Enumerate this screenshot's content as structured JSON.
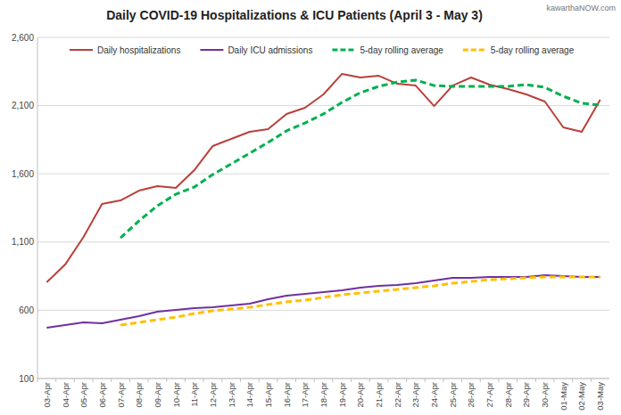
{
  "chart_data": {
    "type": "line",
    "title": "Daily COVID-19 Hospitalizations & ICU Patients (April 3 - May 3)",
    "annotations": [
      "kawarthaNOW.com"
    ],
    "categories": [
      "03-Apr",
      "04-Apr",
      "05-Apr",
      "06-Apr",
      "07-Apr",
      "08-Apr",
      "09-Apr",
      "10-Apr",
      "11-Apr",
      "12-Apr",
      "13-Apr",
      "14-Apr",
      "15-Apr",
      "16-Apr",
      "17-Apr",
      "18-Apr",
      "19-Apr",
      "20-Apr",
      "21-Apr",
      "22-Apr",
      "23-Apr",
      "24-Apr",
      "25-Apr",
      "26-Apr",
      "27-Apr",
      "28-Apr",
      "29-Apr",
      "30-Apr",
      "01-May",
      "02-May",
      "03-May"
    ],
    "series": [
      {
        "name": "Daily hospitalizations",
        "color": "#b9403b",
        "line_style": "solid",
        "values": [
          805,
          935,
          1138,
          1379,
          1405,
          1477,
          1510,
          1497,
          1627,
          1804,
          1856,
          1908,
          1928,
          2039,
          2084,
          2182,
          2332,
          2306,
          2319,
          2260,
          2247,
          2097,
          2247,
          2306,
          2254,
          2221,
          2182,
          2130,
          1941,
          1908,
          2143
        ]
      },
      {
        "name": "Daily ICU admissions",
        "color": "#7030a0",
        "line_style": "solid",
        "values": [
          472,
          492,
          511,
          505,
          531,
          557,
          590,
          603,
          616,
          622,
          635,
          648,
          681,
          707,
          720,
          733,
          746,
          766,
          779,
          785,
          798,
          818,
          838,
          838,
          844,
          844,
          844,
          857,
          851,
          844,
          844
        ]
      },
      {
        "name": "5-day rolling average",
        "color": "#00b050",
        "line_style": "dashed",
        "values": [
          null,
          null,
          null,
          null,
          1131,
          1255,
          1366,
          1451,
          1503,
          1595,
          1673,
          1751,
          1830,
          1915,
          1973,
          2039,
          2123,
          2195,
          2241,
          2273,
          2287,
          2247,
          2241,
          2241,
          2241,
          2241,
          2254,
          2234,
          2169,
          2117,
          2104
        ]
      },
      {
        "name": "5-day rolling average",
        "color": "#ffc000",
        "line_style": "dashed",
        "values": [
          null,
          null,
          null,
          null,
          492,
          511,
          531,
          550,
          576,
          596,
          609,
          622,
          642,
          661,
          674,
          694,
          714,
          727,
          740,
          753,
          766,
          779,
          798,
          811,
          824,
          831,
          838,
          844,
          844,
          844,
          844
        ]
      }
    ],
    "ylim": [
      100,
      2600
    ],
    "yticks": [
      100,
      600,
      {
        "value": 1100,
        "label": "1,100"
      },
      {
        "value": 1600,
        "label": "1,600"
      },
      {
        "value": 2100,
        "label": "2,100"
      },
      {
        "value": 2600,
        "label": "2,600"
      }
    ],
    "grid": true,
    "legend": "top"
  }
}
